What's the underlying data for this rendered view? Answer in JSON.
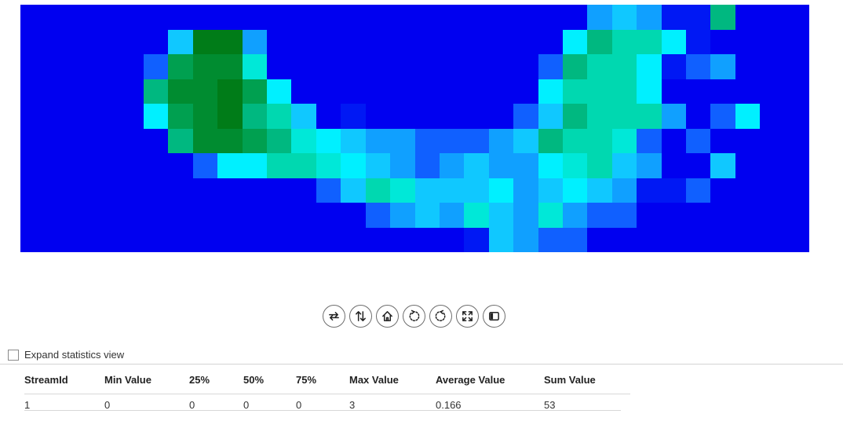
{
  "heatmap": {
    "colors": {
      "0": "#0000f0",
      "a": "#0018f4",
      "b": "#1060ff",
      "c": "#10a0ff",
      "d": "#10c8ff",
      "e": "#00f0ff",
      "f": "#00e8d8",
      "g": "#00d8b0",
      "h": "#00b880",
      "i": "#00a050",
      "j": "#008c30",
      "k": "#007c18"
    },
    "rows": [
      "00000000000000000000000cdcaah000",
      "000000dkkc000000000000ehggea0000",
      "00000bijjf00000000000bhggeabc000",
      "00000hjjkie0000000000eggge000000",
      "00000eijkhgd0a000000bdhgggc0be00",
      "000000hjjihfedccbbbcdhggfb0b0000",
      "0000000beeggfedcbcdccefgdc00d000",
      "000000000000bdgfdddecdedcaab0000",
      "00000000000000bcdcfdcfcbb0000000",
      "000000000000000000adcbb000000000"
    ]
  },
  "toolbar": {
    "buttons": [
      {
        "name": "swap-axes-button",
        "icon": "swap-horizontal-icon"
      },
      {
        "name": "flip-vertical-button",
        "icon": "swap-vertical-icon"
      },
      {
        "name": "reset-home-button",
        "icon": "home-icon"
      },
      {
        "name": "rotate-left-button",
        "icon": "rotate-ccw-icon"
      },
      {
        "name": "rotate-right-button",
        "icon": "rotate-cw-icon"
      },
      {
        "name": "fit-to-view-button",
        "icon": "expand-icon"
      },
      {
        "name": "toggle-panel-button",
        "icon": "sidebar-icon"
      }
    ]
  },
  "stats": {
    "expand_label": "Expand statistics view",
    "expanded": false,
    "columns": [
      "StreamId",
      "Min Value",
      "25%",
      "50%",
      "75%",
      "Max Value",
      "Average Value",
      "Sum Value"
    ],
    "rows": [
      [
        "1",
        "0",
        "0",
        "0",
        "0",
        "3",
        "0.166",
        "53"
      ]
    ]
  }
}
